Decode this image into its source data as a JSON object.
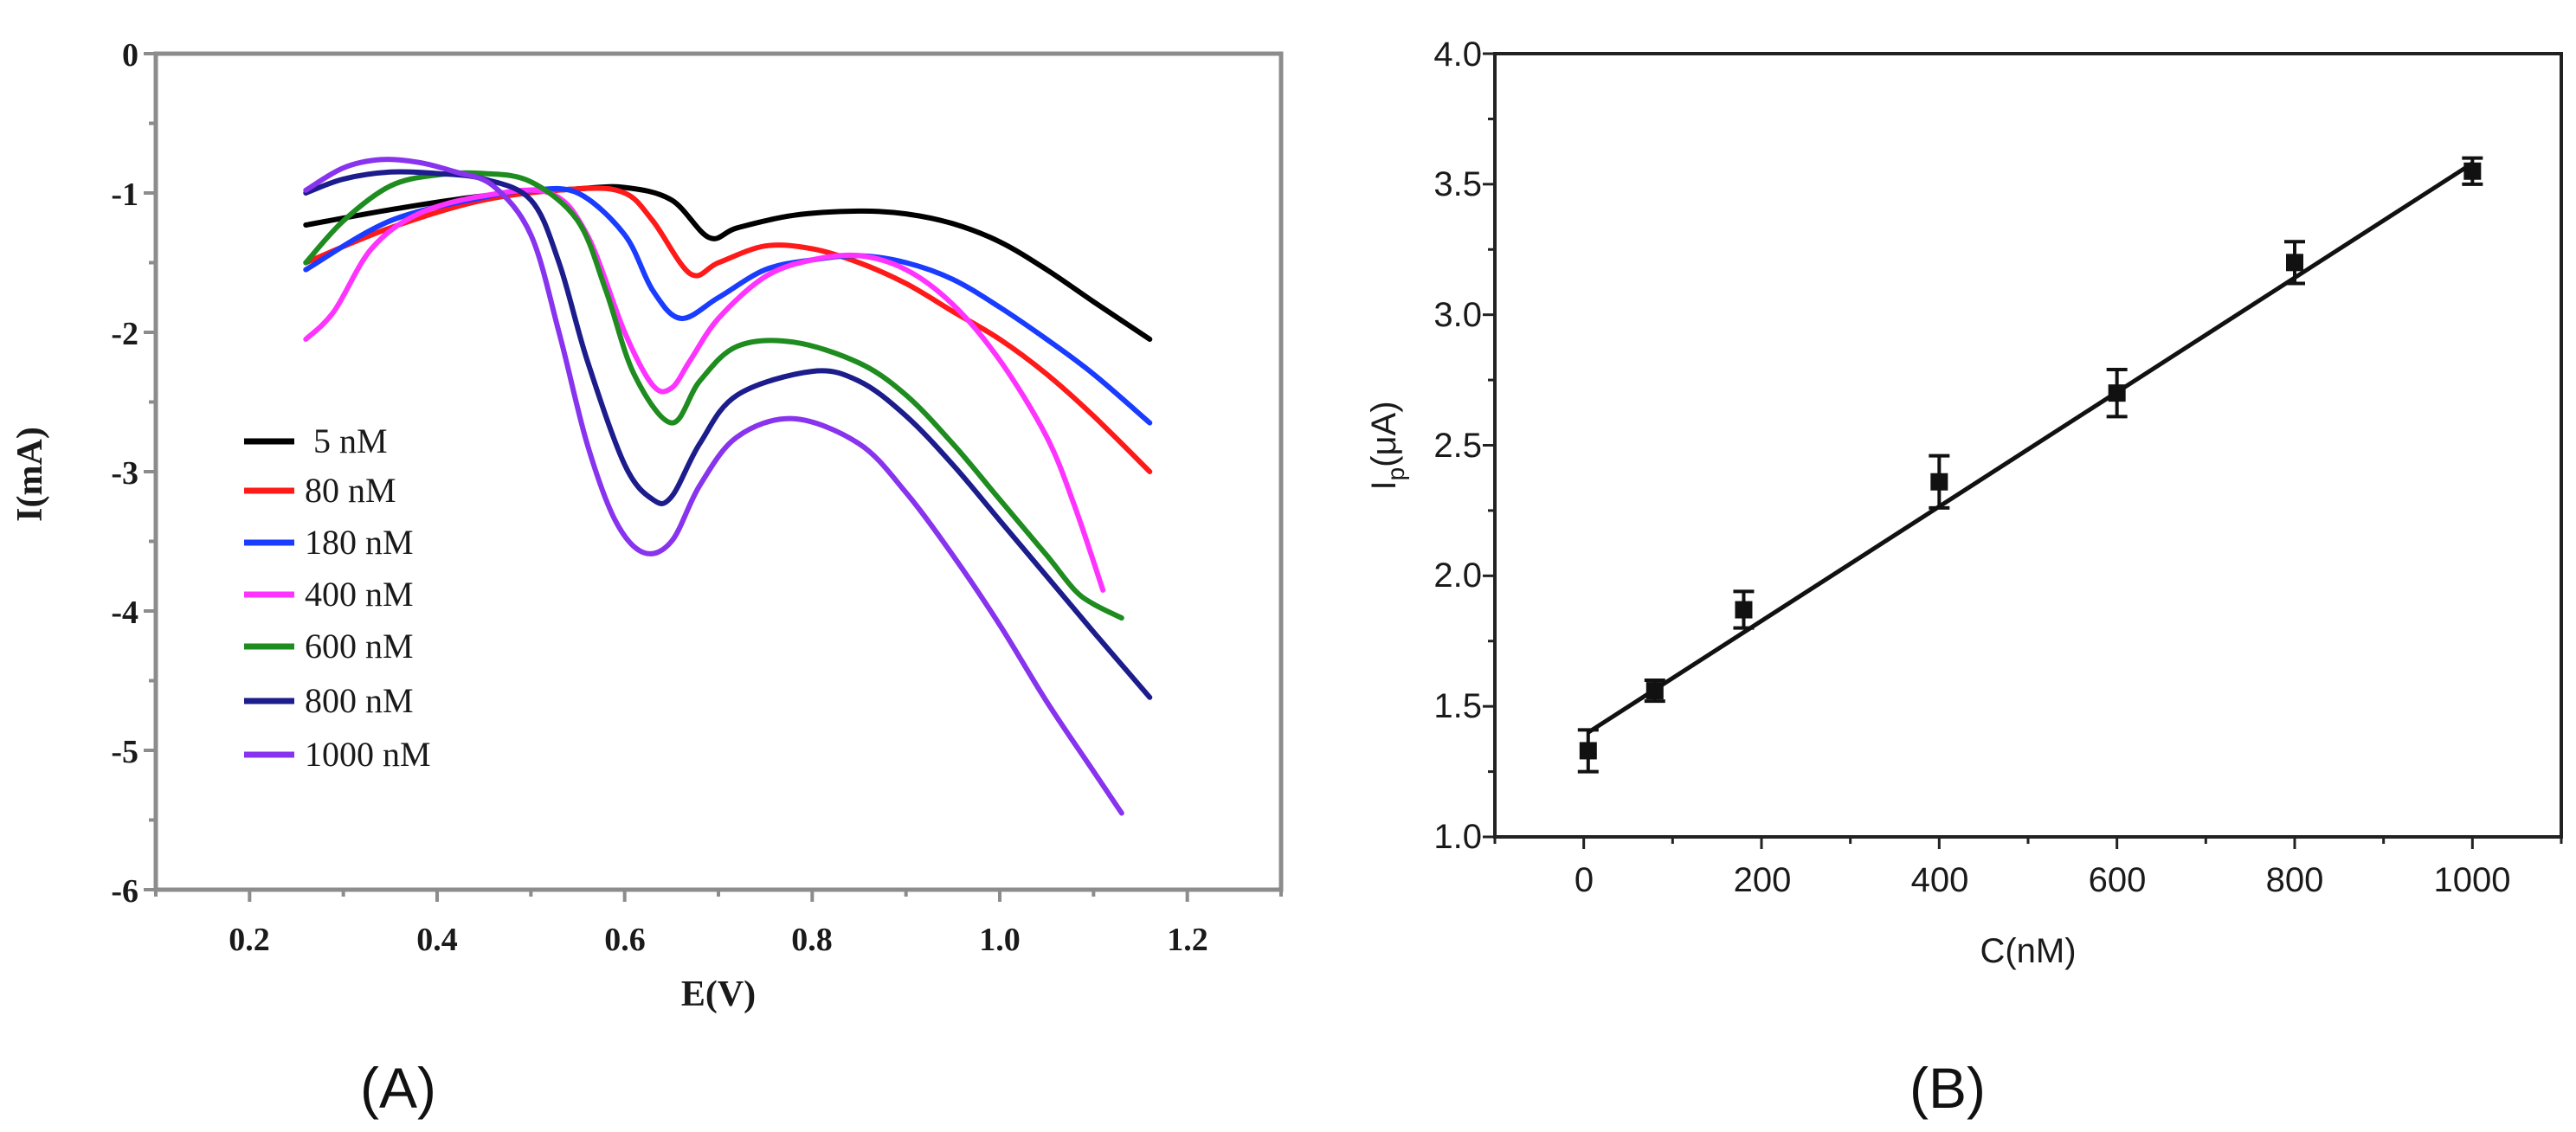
{
  "chart_data": [
    {
      "type": "line",
      "panel_label": "(A)",
      "xlabel": "E(V)",
      "ylabel": "I(mA)",
      "xlim": [
        0.1,
        1.3
      ],
      "ylim": [
        -6,
        0
      ],
      "xticks": [
        "0.2",
        "0.4",
        "0.6",
        "0.8",
        "1.0",
        "1.2"
      ],
      "yticks": [
        "0",
        "-1",
        "-2",
        "-3",
        "-4",
        "-5",
        "-6"
      ],
      "legend_position": "lower-left",
      "series": [
        {
          "name": " 5 nM",
          "color": "#000000",
          "x": [
            0.26,
            0.35,
            0.45,
            0.55,
            0.6,
            0.65,
            0.69,
            0.72,
            0.78,
            0.85,
            0.9,
            0.95,
            1.0,
            1.05,
            1.1,
            1.16
          ],
          "y": [
            -1.23,
            -1.12,
            -1.02,
            -0.97,
            -0.96,
            -1.05,
            -1.32,
            -1.25,
            -1.16,
            -1.13,
            -1.15,
            -1.22,
            -1.35,
            -1.55,
            -1.78,
            -2.05
          ]
        },
        {
          "name": "80 nM",
          "color": "#ff1a1a",
          "x": [
            0.26,
            0.35,
            0.45,
            0.55,
            0.6,
            0.63,
            0.67,
            0.7,
            0.75,
            0.8,
            0.85,
            0.9,
            0.95,
            1.0,
            1.05,
            1.1,
            1.16
          ],
          "y": [
            -1.5,
            -1.25,
            -1.05,
            -0.97,
            -1.0,
            -1.2,
            -1.58,
            -1.5,
            -1.38,
            -1.4,
            -1.5,
            -1.65,
            -1.85,
            -2.05,
            -2.3,
            -2.6,
            -3.0
          ]
        },
        {
          "name": "180 nM",
          "color": "#1a3cff",
          "x": [
            0.26,
            0.35,
            0.45,
            0.5,
            0.55,
            0.6,
            0.63,
            0.66,
            0.7,
            0.75,
            0.8,
            0.85,
            0.9,
            0.95,
            1.0,
            1.05,
            1.1,
            1.16
          ],
          "y": [
            -1.55,
            -1.2,
            -1.03,
            -0.98,
            -1.0,
            -1.3,
            -1.7,
            -1.9,
            -1.75,
            -1.55,
            -1.48,
            -1.45,
            -1.5,
            -1.62,
            -1.82,
            -2.05,
            -2.3,
            -2.65
          ]
        },
        {
          "name": "400 nM",
          "color": "#ff33ff",
          "x": [
            0.26,
            0.29,
            0.33,
            0.38,
            0.45,
            0.52,
            0.56,
            0.6,
            0.63,
            0.65,
            0.67,
            0.7,
            0.75,
            0.8,
            0.85,
            0.9,
            0.95,
            1.0,
            1.05,
            1.08,
            1.11
          ],
          "y": [
            -2.05,
            -1.85,
            -1.4,
            -1.15,
            -1.02,
            -1.0,
            -1.3,
            -2.0,
            -2.38,
            -2.4,
            -2.2,
            -1.9,
            -1.6,
            -1.48,
            -1.45,
            -1.55,
            -1.8,
            -2.2,
            -2.75,
            -3.25,
            -3.85
          ]
        },
        {
          "name": "600 nM",
          "color": "#1e8c1e",
          "x": [
            0.26,
            0.3,
            0.35,
            0.4,
            0.45,
            0.5,
            0.55,
            0.58,
            0.61,
            0.65,
            0.68,
            0.72,
            0.78,
            0.85,
            0.9,
            0.95,
            1.0,
            1.05,
            1.08,
            1.1,
            1.13
          ],
          "y": [
            -1.5,
            -1.2,
            -0.95,
            -0.87,
            -0.86,
            -0.92,
            -1.2,
            -1.7,
            -2.3,
            -2.65,
            -2.35,
            -2.1,
            -2.07,
            -2.22,
            -2.45,
            -2.8,
            -3.2,
            -3.6,
            -3.85,
            -3.95,
            -4.05
          ]
        },
        {
          "name": "800 nM",
          "color": "#1c1c8c",
          "x": [
            0.26,
            0.3,
            0.35,
            0.4,
            0.45,
            0.5,
            0.53,
            0.56,
            0.6,
            0.63,
            0.65,
            0.68,
            0.72,
            0.8,
            0.85,
            0.9,
            0.95,
            1.0,
            1.05,
            1.1,
            1.16
          ],
          "y": [
            -1.0,
            -0.9,
            -0.85,
            -0.86,
            -0.9,
            -1.05,
            -1.5,
            -2.2,
            -2.95,
            -3.2,
            -3.18,
            -2.8,
            -2.45,
            -2.28,
            -2.35,
            -2.6,
            -2.95,
            -3.35,
            -3.75,
            -4.15,
            -4.62
          ]
        },
        {
          "name": "1000 nM",
          "color": "#8833ee",
          "x": [
            0.26,
            0.3,
            0.34,
            0.38,
            0.42,
            0.46,
            0.5,
            0.53,
            0.56,
            0.59,
            0.62,
            0.65,
            0.68,
            0.72,
            0.78,
            0.85,
            0.9,
            0.95,
            1.0,
            1.05,
            1.1,
            1.13
          ],
          "y": [
            -0.98,
            -0.82,
            -0.76,
            -0.78,
            -0.85,
            -0.95,
            -1.3,
            -2.0,
            -2.8,
            -3.35,
            -3.58,
            -3.5,
            -3.1,
            -2.75,
            -2.62,
            -2.8,
            -3.15,
            -3.6,
            -4.1,
            -4.65,
            -5.15,
            -5.45
          ]
        }
      ]
    },
    {
      "type": "scatter",
      "panel_label": "(B)",
      "xlabel": "C(nM)",
      "ylabel_main": "I",
      "ylabel_sub": "p",
      "ylabel_rest": "(μA)",
      "xlim": [
        -100,
        1100
      ],
      "ylim": [
        1.0,
        4.0
      ],
      "xticks": [
        "0",
        "200",
        "400",
        "600",
        "800",
        "1000"
      ],
      "yticks": [
        "1.0",
        "1.5",
        "2.0",
        "2.5",
        "3.0",
        "3.5",
        "4.0"
      ],
      "points": [
        {
          "x": 5,
          "y": 1.33,
          "err": 0.08
        },
        {
          "x": 80,
          "y": 1.56,
          "err": 0.04
        },
        {
          "x": 180,
          "y": 1.87,
          "err": 0.07
        },
        {
          "x": 400,
          "y": 2.36,
          "err": 0.1
        },
        {
          "x": 600,
          "y": 2.7,
          "err": 0.09
        },
        {
          "x": 800,
          "y": 3.2,
          "err": 0.08
        },
        {
          "x": 1000,
          "y": 3.55,
          "err": 0.05
        }
      ],
      "fit_line": {
        "x": [
          5,
          1000
        ],
        "y": [
          1.4,
          3.58
        ]
      }
    }
  ]
}
